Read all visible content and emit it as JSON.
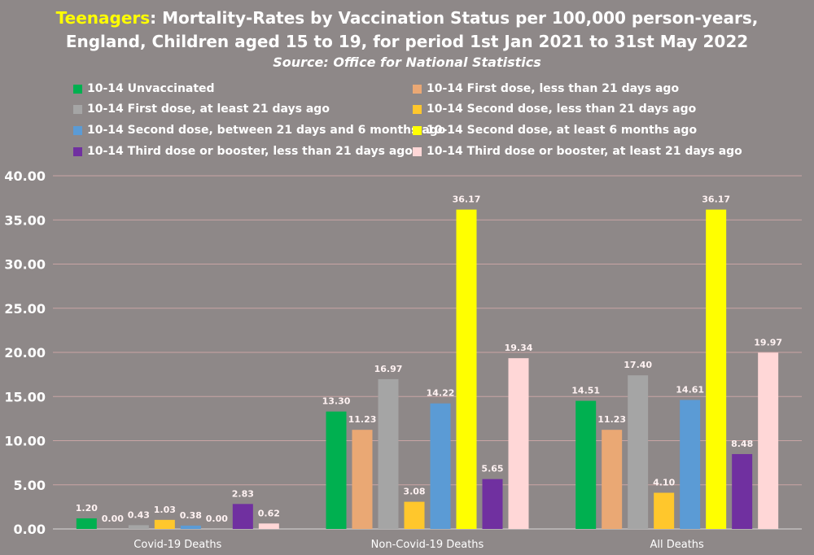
{
  "title": {
    "highlight": "Teenagers",
    "rest": ": Mortality-Rates by Vaccination Status per 100,000 person-years,",
    "line2": "England, Children aged 15 to 19, for period 1st Jan 2021 to 31st May 2022",
    "source": "Source: Office for National Statistics"
  },
  "colors": {
    "background": "#8e8888",
    "grid": "#c9a4a4",
    "title_highlight": "#ffff00"
  },
  "chart_data": {
    "type": "bar",
    "categories": [
      "Covid-19 Deaths",
      "Non-Covid-19 Deaths",
      "All Deaths"
    ],
    "ylim": [
      0,
      40
    ],
    "yticks": [
      "0.00",
      "5.00",
      "10.00",
      "15.00",
      "20.00",
      "25.00",
      "30.00",
      "35.00",
      "40.00"
    ],
    "grid": true,
    "legend_position": "top",
    "series": [
      {
        "name": "10-14 Unvaccinated",
        "color": "#00b050",
        "values": [
          1.2,
          13.3,
          14.51
        ],
        "labels": [
          "1.20",
          "13.30",
          "14.51"
        ]
      },
      {
        "name": "10-14 First dose, less than 21 days ago",
        "color": "#eaa874",
        "values": [
          0.0,
          11.23,
          11.23
        ],
        "labels": [
          "0.00",
          "11.23",
          "11.23"
        ]
      },
      {
        "name": "10-14 First dose, at least 21 days ago",
        "color": "#a5a5a5",
        "values": [
          0.43,
          16.97,
          17.4
        ],
        "labels": [
          "0.43",
          "16.97",
          "17.40"
        ]
      },
      {
        "name": "10-14 Second dose, less than 21 days ago",
        "color": "#ffc72c",
        "values": [
          1.03,
          3.08,
          4.1
        ],
        "labels": [
          "1.03",
          "3.08",
          "4.10"
        ]
      },
      {
        "name": "10-14 Second dose, between 21 days and 6 months ago",
        "color": "#5b9bd5",
        "values": [
          0.38,
          14.22,
          14.61
        ],
        "labels": [
          "0.38",
          "14.22",
          "14.61"
        ]
      },
      {
        "name": "10-14 Second dose, at least 6 months ago",
        "color": "#ffff00",
        "values": [
          0.0,
          36.17,
          36.17
        ],
        "labels": [
          "0.00",
          "36.17",
          "36.17"
        ]
      },
      {
        "name": "10-14 Third dose or booster, less than 21 days ago",
        "color": "#7030a0",
        "values": [
          2.83,
          5.65,
          8.48
        ],
        "labels": [
          "2.83",
          "5.65",
          "8.48"
        ]
      },
      {
        "name": "10-14 Third dose or booster, at least 21 days ago",
        "color": "#ffd7d7",
        "values": [
          0.62,
          19.34,
          19.97
        ],
        "labels": [
          "0.62",
          "19.34",
          "19.97"
        ]
      }
    ]
  }
}
